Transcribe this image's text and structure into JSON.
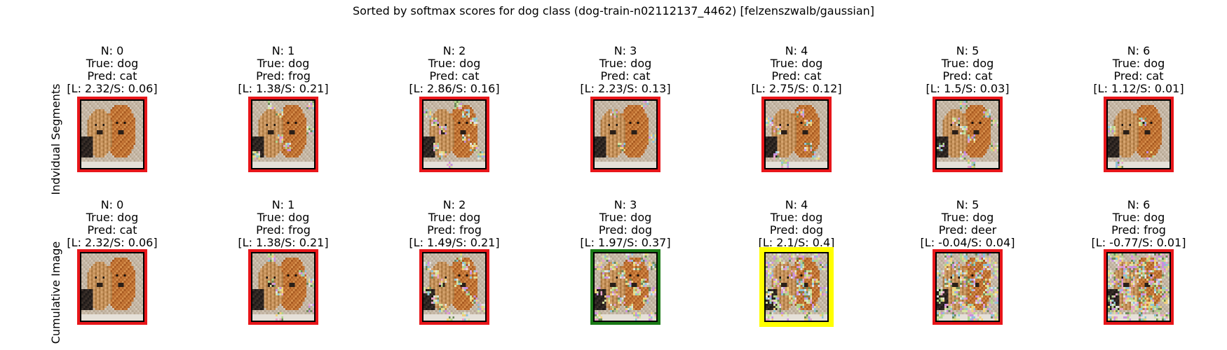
{
  "suptitle": "Sorted by softmax scores for dog class (dog-train-n02112137_4462) [felzenszwalb/gaussian]",
  "row_labels": [
    "Indvidual Segments",
    "Cumulative Image"
  ],
  "colors": {
    "red_border": "#e8161a",
    "green_border": "#1a7a16",
    "yellow_border": "#ffff00",
    "inner_frame": "#000000"
  },
  "rows": [
    {
      "name": "individual",
      "cells": [
        {
          "n": "N: 0",
          "true": "True: dog",
          "pred": "Pred: cat",
          "scores": "[L: 2.32/S: 0.06]",
          "border": "red",
          "noise": 0
        },
        {
          "n": "N: 1",
          "true": "True: dog",
          "pred": "Pred: frog",
          "scores": "[L: 1.38/S: 0.21]",
          "border": "red",
          "noise": 1
        },
        {
          "n": "N: 2",
          "true": "True: dog",
          "pred": "Pred: cat",
          "scores": "[L: 2.86/S: 0.16]",
          "border": "red",
          "noise": 2
        },
        {
          "n": "N: 3",
          "true": "True: dog",
          "pred": "Pred: cat",
          "scores": "[L: 2.23/S: 0.13]",
          "border": "red",
          "noise": 3
        },
        {
          "n": "N: 4",
          "true": "True: dog",
          "pred": "Pred: cat",
          "scores": "[L: 2.75/S: 0.12]",
          "border": "red",
          "noise": 4
        },
        {
          "n": "N: 5",
          "true": "True: dog",
          "pred": "Pred: cat",
          "scores": "[L: 1.5/S: 0.03]",
          "border": "red",
          "noise": 5
        },
        {
          "n": "N: 6",
          "true": "True: dog",
          "pred": "Pred: cat",
          "scores": "[L: 1.12/S: 0.01]",
          "border": "red",
          "noise": 6
        }
      ]
    },
    {
      "name": "cumulative",
      "cells": [
        {
          "n": "N: 0",
          "true": "True: dog",
          "pred": "Pred: cat",
          "scores": "[L: 2.32/S: 0.06]",
          "border": "red",
          "noise": 0
        },
        {
          "n": "N: 1",
          "true": "True: dog",
          "pred": "Pred: frog",
          "scores": "[L: 1.38/S: 0.21]",
          "border": "red",
          "noise": 1
        },
        {
          "n": "N: 2",
          "true": "True: dog",
          "pred": "Pred: frog",
          "scores": "[L: 1.49/S: 0.21]",
          "border": "red",
          "noise": 2
        },
        {
          "n": "N: 3",
          "true": "True: dog",
          "pred": "Pred: dog",
          "scores": "[L: 1.97/S: 0.37]",
          "border": "green",
          "noise": 3
        },
        {
          "n": "N: 4",
          "true": "True: dog",
          "pred": "Pred: dog",
          "scores": "[L: 2.1/S: 0.4]",
          "border": "yellow",
          "noise": 4
        },
        {
          "n": "N: 5",
          "true": "True: dog",
          "pred": "Pred: deer",
          "scores": "[L: -0.04/S: 0.04]",
          "border": "red",
          "noise": 5
        },
        {
          "n": "N: 6",
          "true": "True: dog",
          "pred": "Pred: frog",
          "scores": "[L: -0.77/S: 0.01]",
          "border": "red",
          "noise": 6
        }
      ]
    }
  ]
}
